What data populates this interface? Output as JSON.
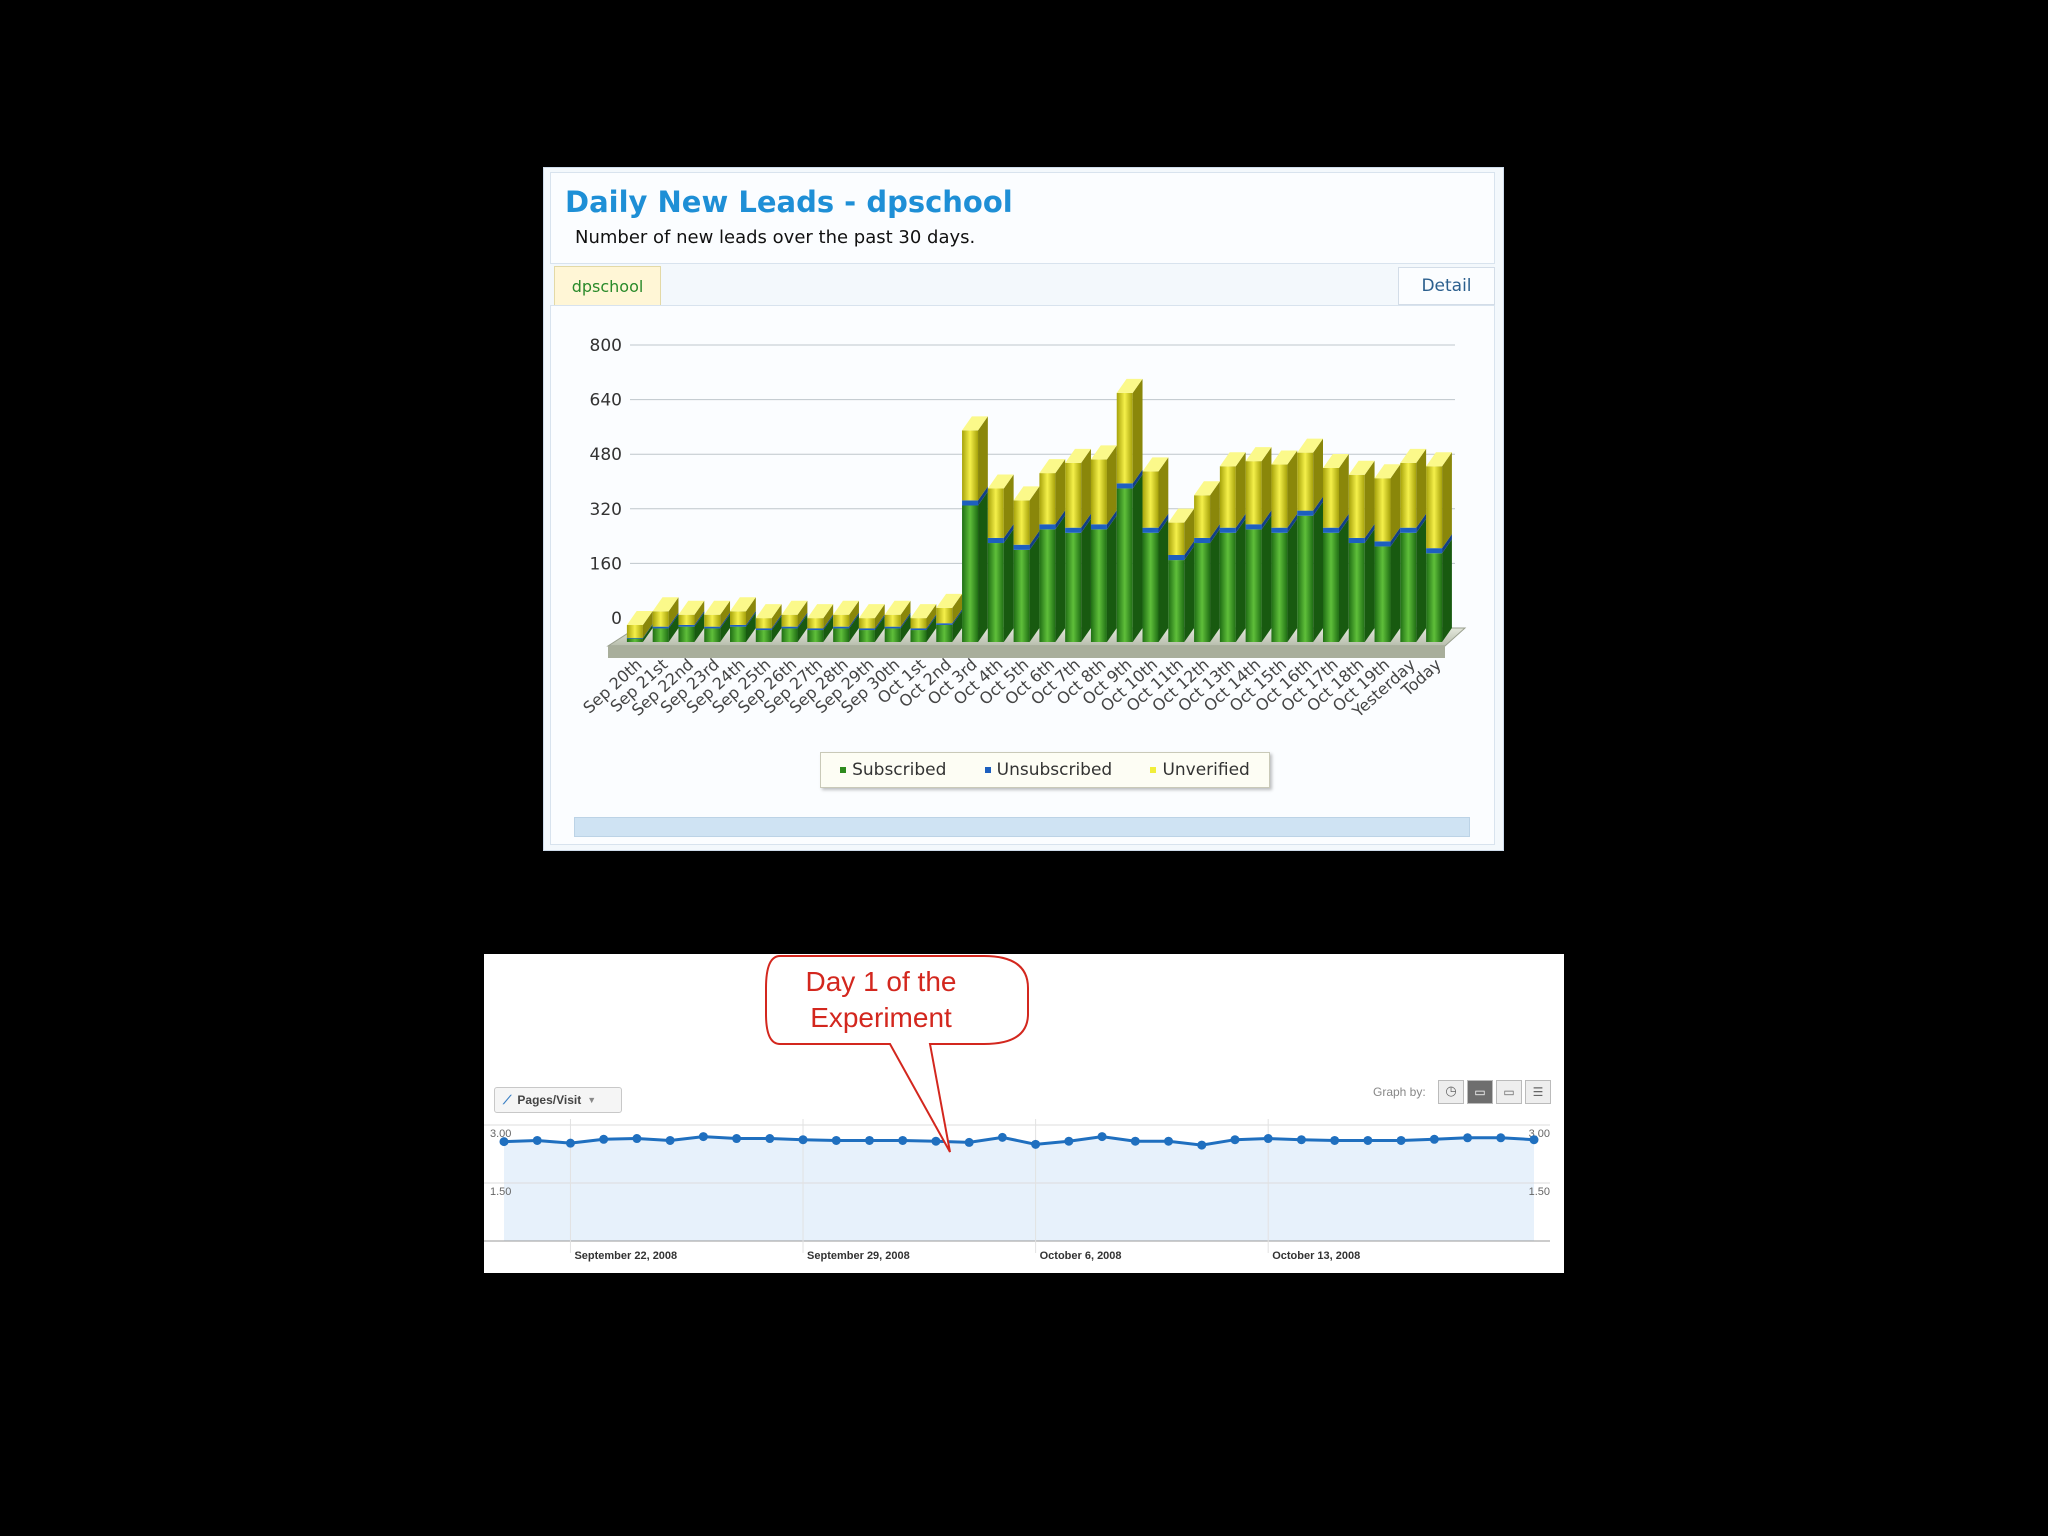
{
  "leads_panel": {
    "title": "Daily New Leads - dpschool",
    "subtitle": "Number of new leads over the past 30 days.",
    "tab_label": "dpschool",
    "detail_label": "Detail",
    "colors": {
      "subscribed": "#2e8b1e",
      "unsubscribed": "#1d5fbf",
      "unverified": "#e3e21a"
    }
  },
  "analytics_panel": {
    "metric_label": "Pages/Visit",
    "graph_by_label": "Graph by:",
    "callout": "Day 1 of the\nExperiment",
    "accent": "#1f6fbf"
  },
  "chart_data": [
    {
      "type": "bar",
      "stacked": true,
      "title": "Daily New Leads - dpschool",
      "subtitle": "Number of new leads over the past 30 days.",
      "categories": [
        "Sep 20th",
        "Sep 21st",
        "Sep 22nd",
        "Sep 23rd",
        "Sep 24th",
        "Sep 25th",
        "Sep 26th",
        "Sep 27th",
        "Sep 28th",
        "Sep 29th",
        "Sep 30th",
        "Oct 1st",
        "Oct 2nd",
        "Oct 3rd",
        "Oct 4th",
        "Oct 5th",
        "Oct 6th",
        "Oct 7th",
        "Oct 8th",
        "Oct 9th",
        "Oct 10th",
        "Oct 11th",
        "Oct 12th",
        "Oct 13th",
        "Oct 14th",
        "Oct 15th",
        "Oct 16th",
        "Oct 17th",
        "Oct 18th",
        "Oct 19th",
        "Yesterday",
        "Today"
      ],
      "series": [
        {
          "name": "Subscribed",
          "values": [
            10,
            40,
            45,
            40,
            45,
            35,
            40,
            35,
            40,
            35,
            40,
            35,
            50,
            400,
            290,
            270,
            330,
            320,
            330,
            450,
            320,
            240,
            290,
            320,
            330,
            320,
            370,
            320,
            290,
            280,
            320,
            260
          ]
        },
        {
          "name": "Unsubscribed",
          "values": [
            2,
            5,
            5,
            5,
            5,
            5,
            5,
            5,
            5,
            5,
            5,
            5,
            5,
            15,
            15,
            15,
            15,
            15,
            15,
            15,
            15,
            15,
            15,
            15,
            15,
            15,
            15,
            15,
            15,
            15,
            15,
            15
          ]
        },
        {
          "name": "Unverified",
          "values": [
            38,
            45,
            30,
            35,
            40,
            30,
            35,
            30,
            35,
            30,
            35,
            30,
            45,
            205,
            145,
            130,
            150,
            190,
            190,
            265,
            165,
            95,
            125,
            180,
            185,
            185,
            170,
            175,
            185,
            185,
            190,
            240
          ]
        }
      ],
      "y_ticks": [
        0,
        160,
        320,
        480,
        640,
        800
      ],
      "ylim": [
        0,
        800
      ],
      "legend": [
        "Subscribed",
        "Unsubscribed",
        "Unverified"
      ],
      "legend_position": "bottom",
      "grid": true
    },
    {
      "type": "line",
      "series": [
        {
          "name": "Pages/Visit",
          "values": [
            2.57,
            2.6,
            2.53,
            2.63,
            2.65,
            2.6,
            2.7,
            2.65,
            2.65,
            2.62,
            2.6,
            2.6,
            2.6,
            2.58,
            2.55,
            2.68,
            2.5,
            2.58,
            2.7,
            2.58,
            2.58,
            2.48,
            2.62,
            2.65,
            2.62,
            2.6,
            2.6,
            2.6,
            2.63,
            2.67,
            2.67,
            2.62
          ]
        }
      ],
      "y_ticks": [
        1.5,
        3.0
      ],
      "y_tick_labels": [
        "1.50",
        "3.00"
      ],
      "ylim": [
        0,
        3.0
      ],
      "x_tick_labels": [
        "September 22, 2008",
        "September 29, 2008",
        "October 6, 2008",
        "October 13, 2008"
      ],
      "annotation": "Day 1 of the\nExperiment"
    }
  ]
}
